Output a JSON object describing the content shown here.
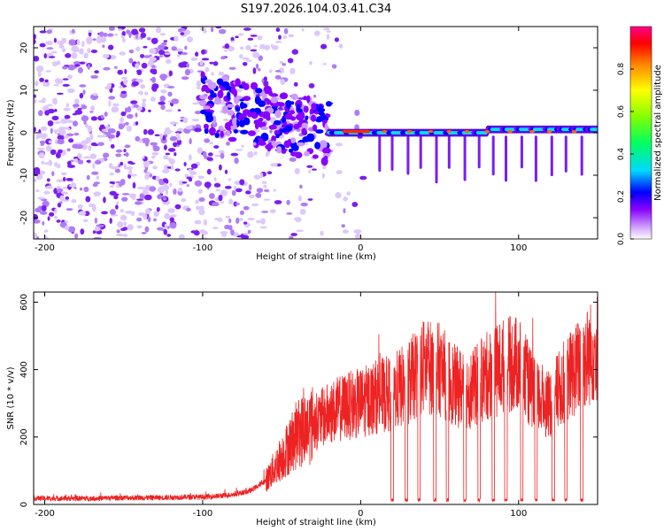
{
  "figure": {
    "title": "S197.2026.104.03.41.C34"
  },
  "chart_data": [
    {
      "type": "heatmap",
      "title": "S197.2026.104.03.41.C34",
      "xlabel": "Height of straight line (km)",
      "ylabel": "Frequency (Hz)",
      "xlim": [
        -207,
        150
      ],
      "ylim": [
        -25,
        25
      ],
      "x_ticks": [
        -200,
        -100,
        0,
        100
      ],
      "y_ticks": [
        20,
        10,
        0,
        -10,
        -20
      ],
      "colorbar": {
        "label": "Normalized spectral amplitude",
        "range": [
          0,
          1
        ],
        "ticks": [
          0.0,
          0.2,
          0.4,
          0.6,
          0.8
        ],
        "colormap": [
          "#ffffff",
          "#cc99ff",
          "#8800ff",
          "#0000ff",
          "#00e0ff",
          "#00ff00",
          "#ffff00",
          "#ff8800",
          "#ff0000",
          "#ff0088"
        ]
      },
      "features": {
        "noise_region_km": [
          -207,
          -25
        ],
        "main_tone_frequency_hz": 0,
        "main_tone_start_km": -20,
        "peak_amplitude_km": [
          -10,
          5
        ],
        "spike_positions_km": [
          12,
          20,
          30,
          38,
          48,
          56,
          66,
          75,
          84,
          92,
          102,
          111,
          121,
          130,
          140
        ]
      }
    },
    {
      "type": "line",
      "xlabel": "Height of straight line (km)",
      "ylabel": "SNR (10 * v/v)",
      "xlim": [
        -207,
        150
      ],
      "ylim": [
        0,
        630
      ],
      "x_ticks": [
        -200,
        -100,
        0,
        100
      ],
      "y_ticks": [
        0,
        200,
        400,
        600
      ],
      "color": "#ee2222",
      "series": [
        {
          "name": "SNR",
          "x": [
            -207,
            -190,
            -170,
            -150,
            -130,
            -110,
            -100,
            -90,
            -80,
            -70,
            -60,
            -50,
            -40,
            -30,
            -20,
            -10,
            0,
            10,
            20,
            30,
            40,
            50,
            60,
            70,
            80,
            90,
            100,
            110,
            120,
            130,
            140,
            150
          ],
          "values": [
            18,
            18,
            18,
            20,
            20,
            22,
            22,
            25,
            30,
            40,
            70,
            140,
            210,
            240,
            270,
            290,
            300,
            320,
            330,
            360,
            410,
            400,
            350,
            340,
            380,
            410,
            420,
            320,
            300,
            370,
            420,
            470
          ]
        }
      ],
      "dropouts_km": [
        20,
        29,
        37,
        47,
        55,
        66,
        75,
        84,
        92,
        102,
        111,
        122,
        130,
        140
      ]
    }
  ]
}
